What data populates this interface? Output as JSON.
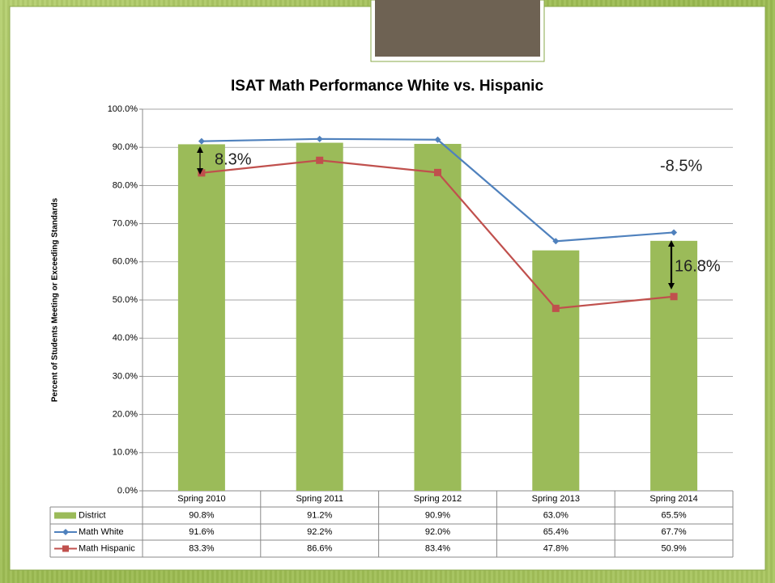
{
  "chart_data": {
    "type": "bar_line_table",
    "title": "ISAT Math Performance White vs. Hispanic",
    "y_label": "Percent of Students Meeting or Exceeding Standards",
    "categories": [
      "Spring 2010",
      "Spring 2011",
      "Spring 2012",
      "Spring 2013",
      "Spring 2014"
    ],
    "ylim": [
      0,
      100
    ],
    "yticks": [
      {
        "value": 0,
        "label": "0.0%"
      },
      {
        "value": 10,
        "label": "10.0%"
      },
      {
        "value": 20,
        "label": "20.0%"
      },
      {
        "value": 30,
        "label": "30.0%"
      },
      {
        "value": 40,
        "label": "40.0%"
      },
      {
        "value": 50,
        "label": "50.0%"
      },
      {
        "value": 60,
        "label": "60.0%"
      },
      {
        "value": 70,
        "label": "70.0%"
      },
      {
        "value": 80,
        "label": "80.0%"
      },
      {
        "value": 90,
        "label": "90.0%"
      },
      {
        "value": 100,
        "label": "100.0%"
      }
    ],
    "grid": true,
    "series": [
      {
        "name": "District",
        "kind": "bar",
        "color": "#9bbb59",
        "values": [
          90.8,
          91.2,
          90.9,
          63.0,
          65.5
        ],
        "value_labels": [
          "90.8%",
          "91.2%",
          "90.9%",
          "63.0%",
          "65.5%"
        ]
      },
      {
        "name": "Math White",
        "kind": "line",
        "color": "#4f81bd",
        "values": [
          91.6,
          92.2,
          92.0,
          65.4,
          67.7
        ],
        "value_labels": [
          "91.6%",
          "92.2%",
          "92.0%",
          "65.4%",
          "67.7%"
        ]
      },
      {
        "name": "Math Hispanic",
        "kind": "line",
        "color": "#c0504d",
        "values": [
          83.3,
          86.6,
          83.4,
          47.8,
          50.9
        ],
        "value_labels": [
          "83.3%",
          "86.6%",
          "83.4%",
          "47.8%",
          "50.9%"
        ]
      }
    ],
    "annotations": [
      "8.3%",
      "-8.5%",
      "16.8%"
    ]
  }
}
